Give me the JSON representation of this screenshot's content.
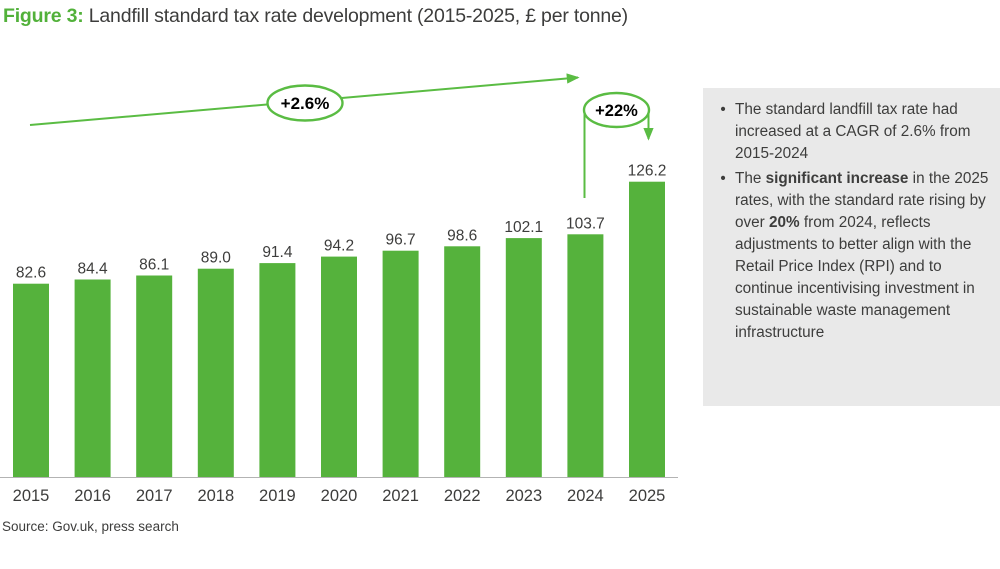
{
  "title": {
    "prefix": "Figure 3:",
    "rest": " Landfill standard tax rate development (2015-2025, £ per tonne)"
  },
  "chart_data": {
    "type": "bar",
    "title": "Landfill standard tax rate development",
    "unit": "£ per tonne",
    "categories": [
      "2015",
      "2016",
      "2017",
      "2018",
      "2019",
      "2020",
      "2021",
      "2022",
      "2023",
      "2024",
      "2025"
    ],
    "values": [
      82.6,
      84.4,
      86.1,
      89.0,
      91.4,
      94.2,
      96.7,
      98.6,
      102.1,
      103.7,
      126.2
    ],
    "ylim": [
      0,
      135
    ],
    "grid": false,
    "legend": "none",
    "annotations": [
      {
        "type": "cagr-arrow",
        "label": "+2.6%",
        "span": "2015-2024"
      },
      {
        "type": "increase-arrow",
        "label": "+22%",
        "span": "2024-2025"
      }
    ]
  },
  "sidebar": {
    "bullets": [
      {
        "segments": [
          {
            "text": "The standard landfill tax rate had increased at a CAGR of 2.6% from 2015-2024"
          }
        ]
      },
      {
        "segments": [
          {
            "text": "The "
          },
          {
            "text": "significant increase",
            "bold": true
          },
          {
            "text": " in the 2025 rates, with the standard rate rising by over "
          },
          {
            "text": "20%",
            "bold": true
          },
          {
            "text": " from 2024, reflects adjustments to better align with the Retail Price Index (RPI) and to continue incentivising investment in sustainable waste management infrastructure"
          }
        ]
      }
    ]
  },
  "source": "Source: Gov.uk, press search",
  "colors": {
    "bar_green": "#55b23c",
    "title_green": "#52b13a",
    "arrow_green": "#5abc43",
    "text_dark": "#3d3d3c",
    "panel_bg": "#e9e9e9",
    "axis_line": "#b3b3b3",
    "badge_fill": "#ffffff"
  }
}
